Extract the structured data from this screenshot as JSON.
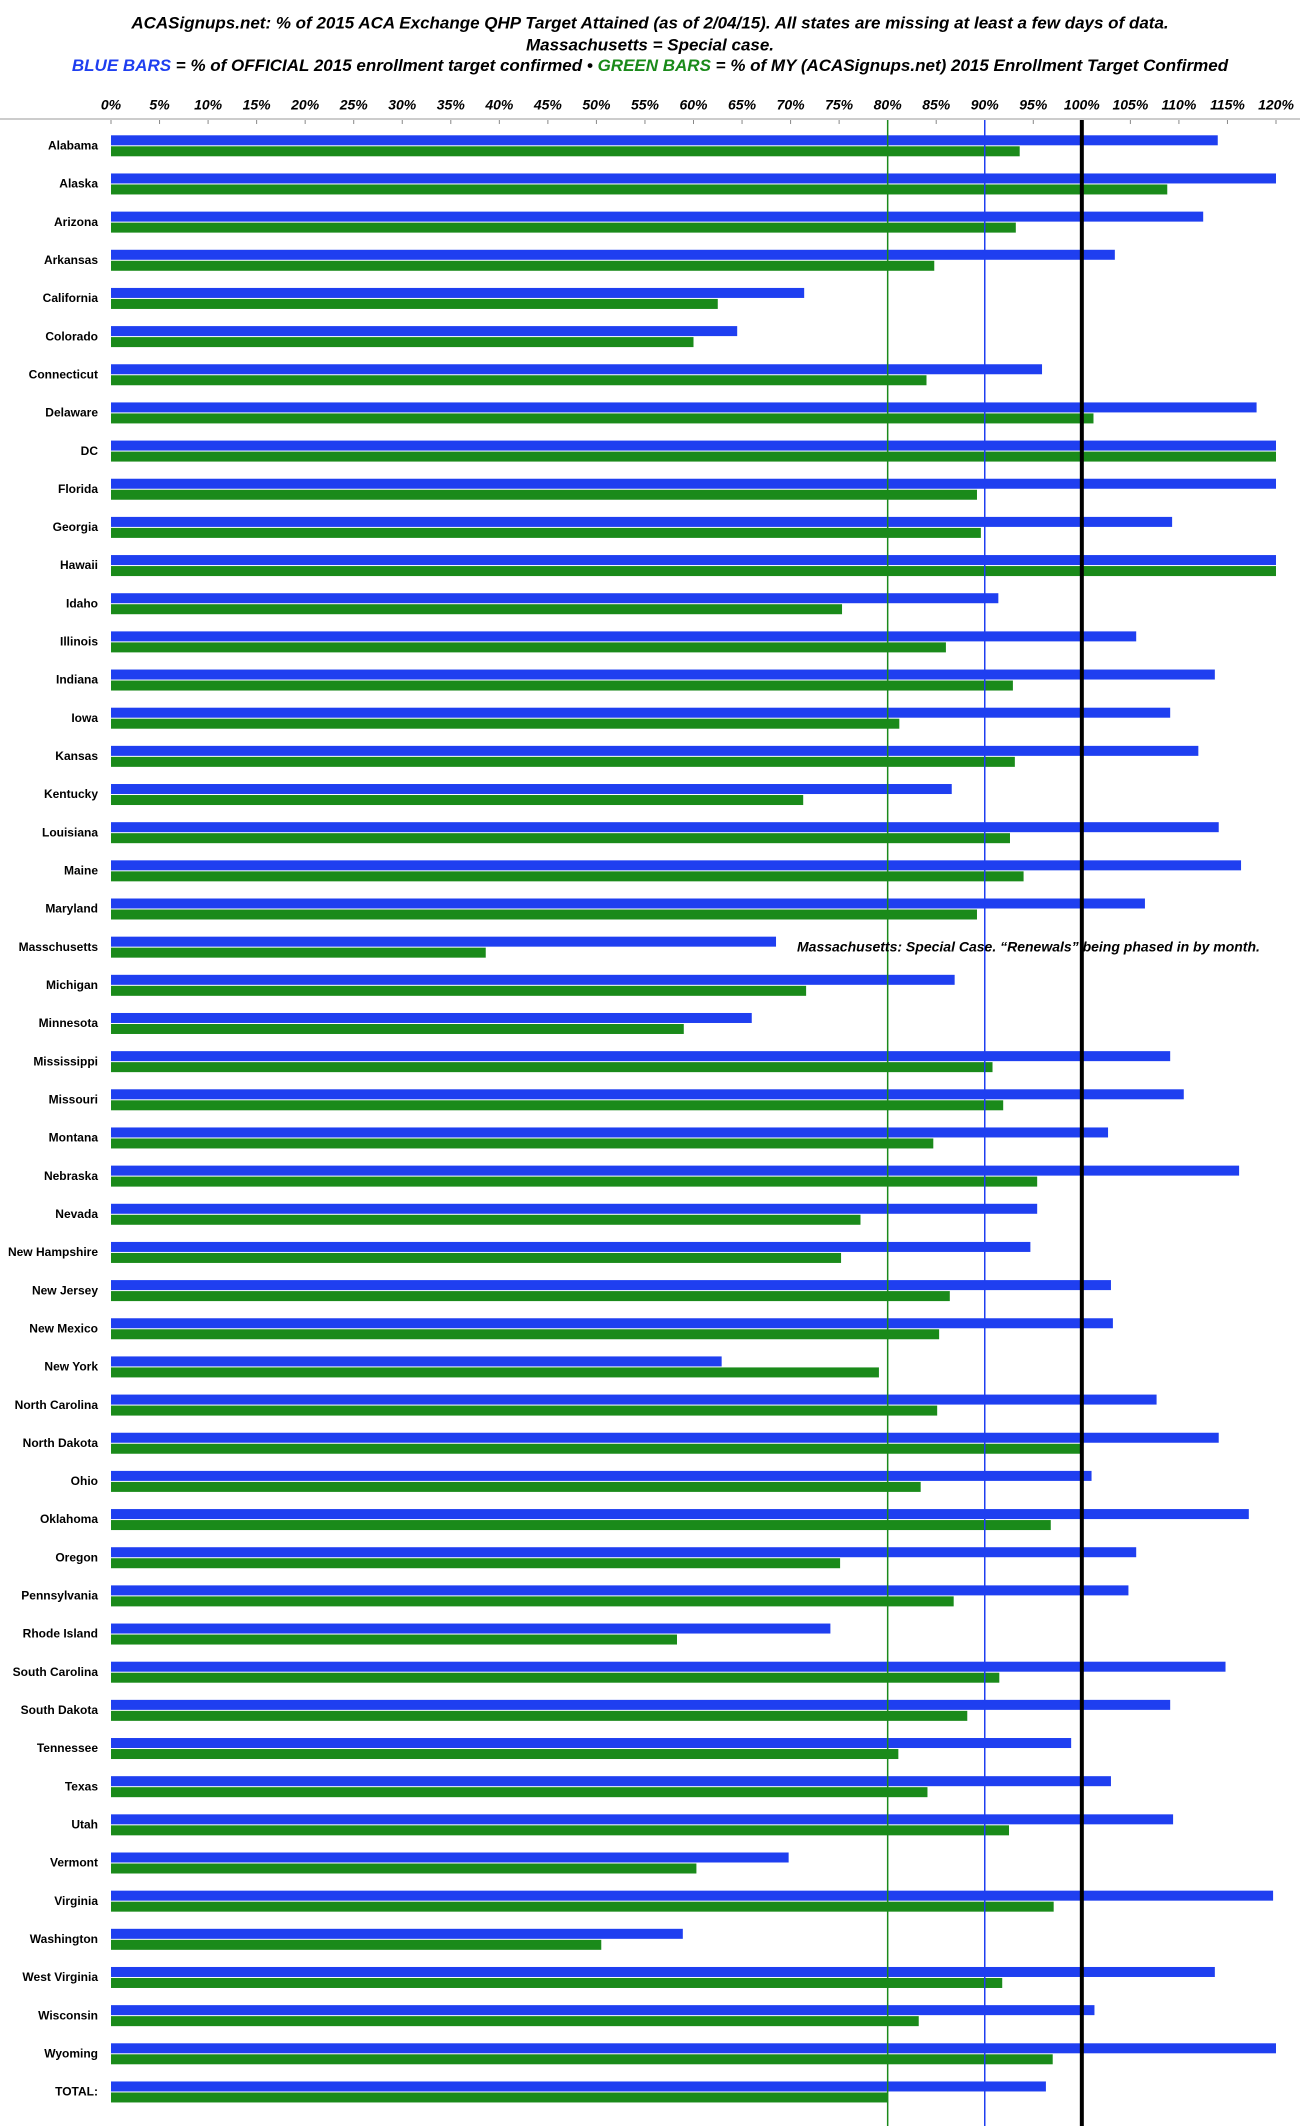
{
  "chart_data": {
    "type": "hbar",
    "title": "ACASignups.net: % of 2015 ACA Exchange QHP Target Attained (as of 2/04/15). All states are missing at least a few days of data.",
    "subtitle": "Massachusetts = Special case.",
    "legend_text": [
      "= % of OFFICIAL 2015 enrollment target confirmed",
      "•",
      "= % of MY (ACASignups.net) 2015 Enrollment Target Confirmed"
    ],
    "annotation": "Massachusetts: Special Case. “Renewals” being phased in by month.",
    "categories": [
      "Alabama",
      "Alaska",
      "Arizona",
      "Arkansas",
      "California",
      "Colorado",
      "Connecticut",
      "Delaware",
      "DC",
      "Florida",
      "Georgia",
      "Hawaii",
      "Idaho",
      "Illinois",
      "Indiana",
      "Iowa",
      "Kansas",
      "Kentucky",
      "Louisiana",
      "Maine",
      "Maryland",
      "Masschusetts",
      "Michigan",
      "Minnesota",
      "Mississippi",
      "Missouri",
      "Montana",
      "Nebraska",
      "Nevada",
      "New Hampshire",
      "New Jersey",
      "New Mexico",
      "New York",
      "North Carolina",
      "North Dakota",
      "Ohio",
      "Oklahoma",
      "Oregon",
      "Pennsylvania",
      "Rhode Island",
      "South Carolina",
      "South Dakota",
      "Tennessee",
      "Texas",
      "Utah",
      "Vermont",
      "Virginia",
      "Washington",
      "West Virginia",
      "Wisconsin",
      "Wyoming",
      "TOTAL:"
    ],
    "series": [
      {
        "name": "BLUE BARS",
        "color": "#1f3ff0",
        "values": [
          114.0,
          120,
          112.5,
          103.4,
          71.4,
          64.5,
          95.9,
          118.0,
          120,
          120,
          109.3,
          120,
          91.4,
          105.6,
          113.7,
          109.1,
          112.0,
          86.6,
          114.1,
          116.4,
          106.5,
          68.5,
          86.9,
          66.0,
          109.1,
          110.5,
          102.7,
          116.2,
          95.4,
          94.7,
          103.0,
          103.2,
          62.9,
          107.7,
          114.1,
          101.0,
          117.2,
          105.6,
          104.8,
          74.1,
          114.8,
          109.1,
          98.9,
          103.0,
          109.4,
          69.8,
          119.7,
          58.9,
          113.7,
          101.3,
          120,
          96.3
        ]
      },
      {
        "name": "GREEN BARS",
        "color": "#1a8a1a",
        "values": [
          93.6,
          108.8,
          93.2,
          84.8,
          62.5,
          60.0,
          84.0,
          101.2,
          120,
          89.2,
          89.6,
          120,
          75.3,
          86.0,
          92.9,
          81.2,
          93.1,
          71.3,
          92.6,
          94.0,
          89.2,
          38.6,
          71.6,
          59.0,
          90.8,
          91.9,
          84.7,
          95.4,
          77.2,
          75.2,
          86.4,
          85.3,
          79.1,
          85.1,
          99.9,
          83.4,
          96.8,
          75.1,
          86.8,
          58.3,
          91.5,
          88.2,
          81.1,
          84.1,
          92.5,
          60.3,
          97.1,
          50.5,
          91.8,
          83.2,
          97.0,
          80.0
        ]
      }
    ],
    "reference_lines": [
      {
        "value": 80,
        "color": "#1a8a1a"
      },
      {
        "value": 90,
        "color": "#1f3ff0"
      },
      {
        "value": 100,
        "color": "#000000"
      }
    ],
    "xlim": [
      0,
      120
    ],
    "xticks": [
      {
        "value": 0,
        "label": "0%"
      },
      {
        "value": 5,
        "label": "5%"
      },
      {
        "value": 10,
        "label": "10%"
      },
      {
        "value": 15,
        "label": "15%"
      },
      {
        "value": 20,
        "label": "20%"
      },
      {
        "value": 25,
        "label": "25%"
      },
      {
        "value": 30,
        "label": "30%"
      },
      {
        "value": 35,
        "label": "35%"
      },
      {
        "value": 40,
        "label": "40%"
      },
      {
        "value": 45,
        "label": "45%"
      },
      {
        "value": 50,
        "label": "50%"
      },
      {
        "value": 55,
        "label": "55%"
      },
      {
        "value": 60,
        "label": "60%"
      },
      {
        "value": 65,
        "label": "65%"
      },
      {
        "value": 70,
        "label": "70%"
      },
      {
        "value": 75,
        "label": "75%"
      },
      {
        "value": 80,
        "label": "80%"
      },
      {
        "value": 85,
        "label": "85%"
      },
      {
        "value": 90,
        "label": "90%"
      },
      {
        "value": 95,
        "label": "95%"
      },
      {
        "value": 100,
        "label": "100%"
      },
      {
        "value": 105,
        "label": "105%"
      },
      {
        "value": 110,
        "label": "110%"
      },
      {
        "value": 115,
        "label": "115%"
      },
      {
        "value": 120,
        "label": "120%"
      }
    ]
  }
}
